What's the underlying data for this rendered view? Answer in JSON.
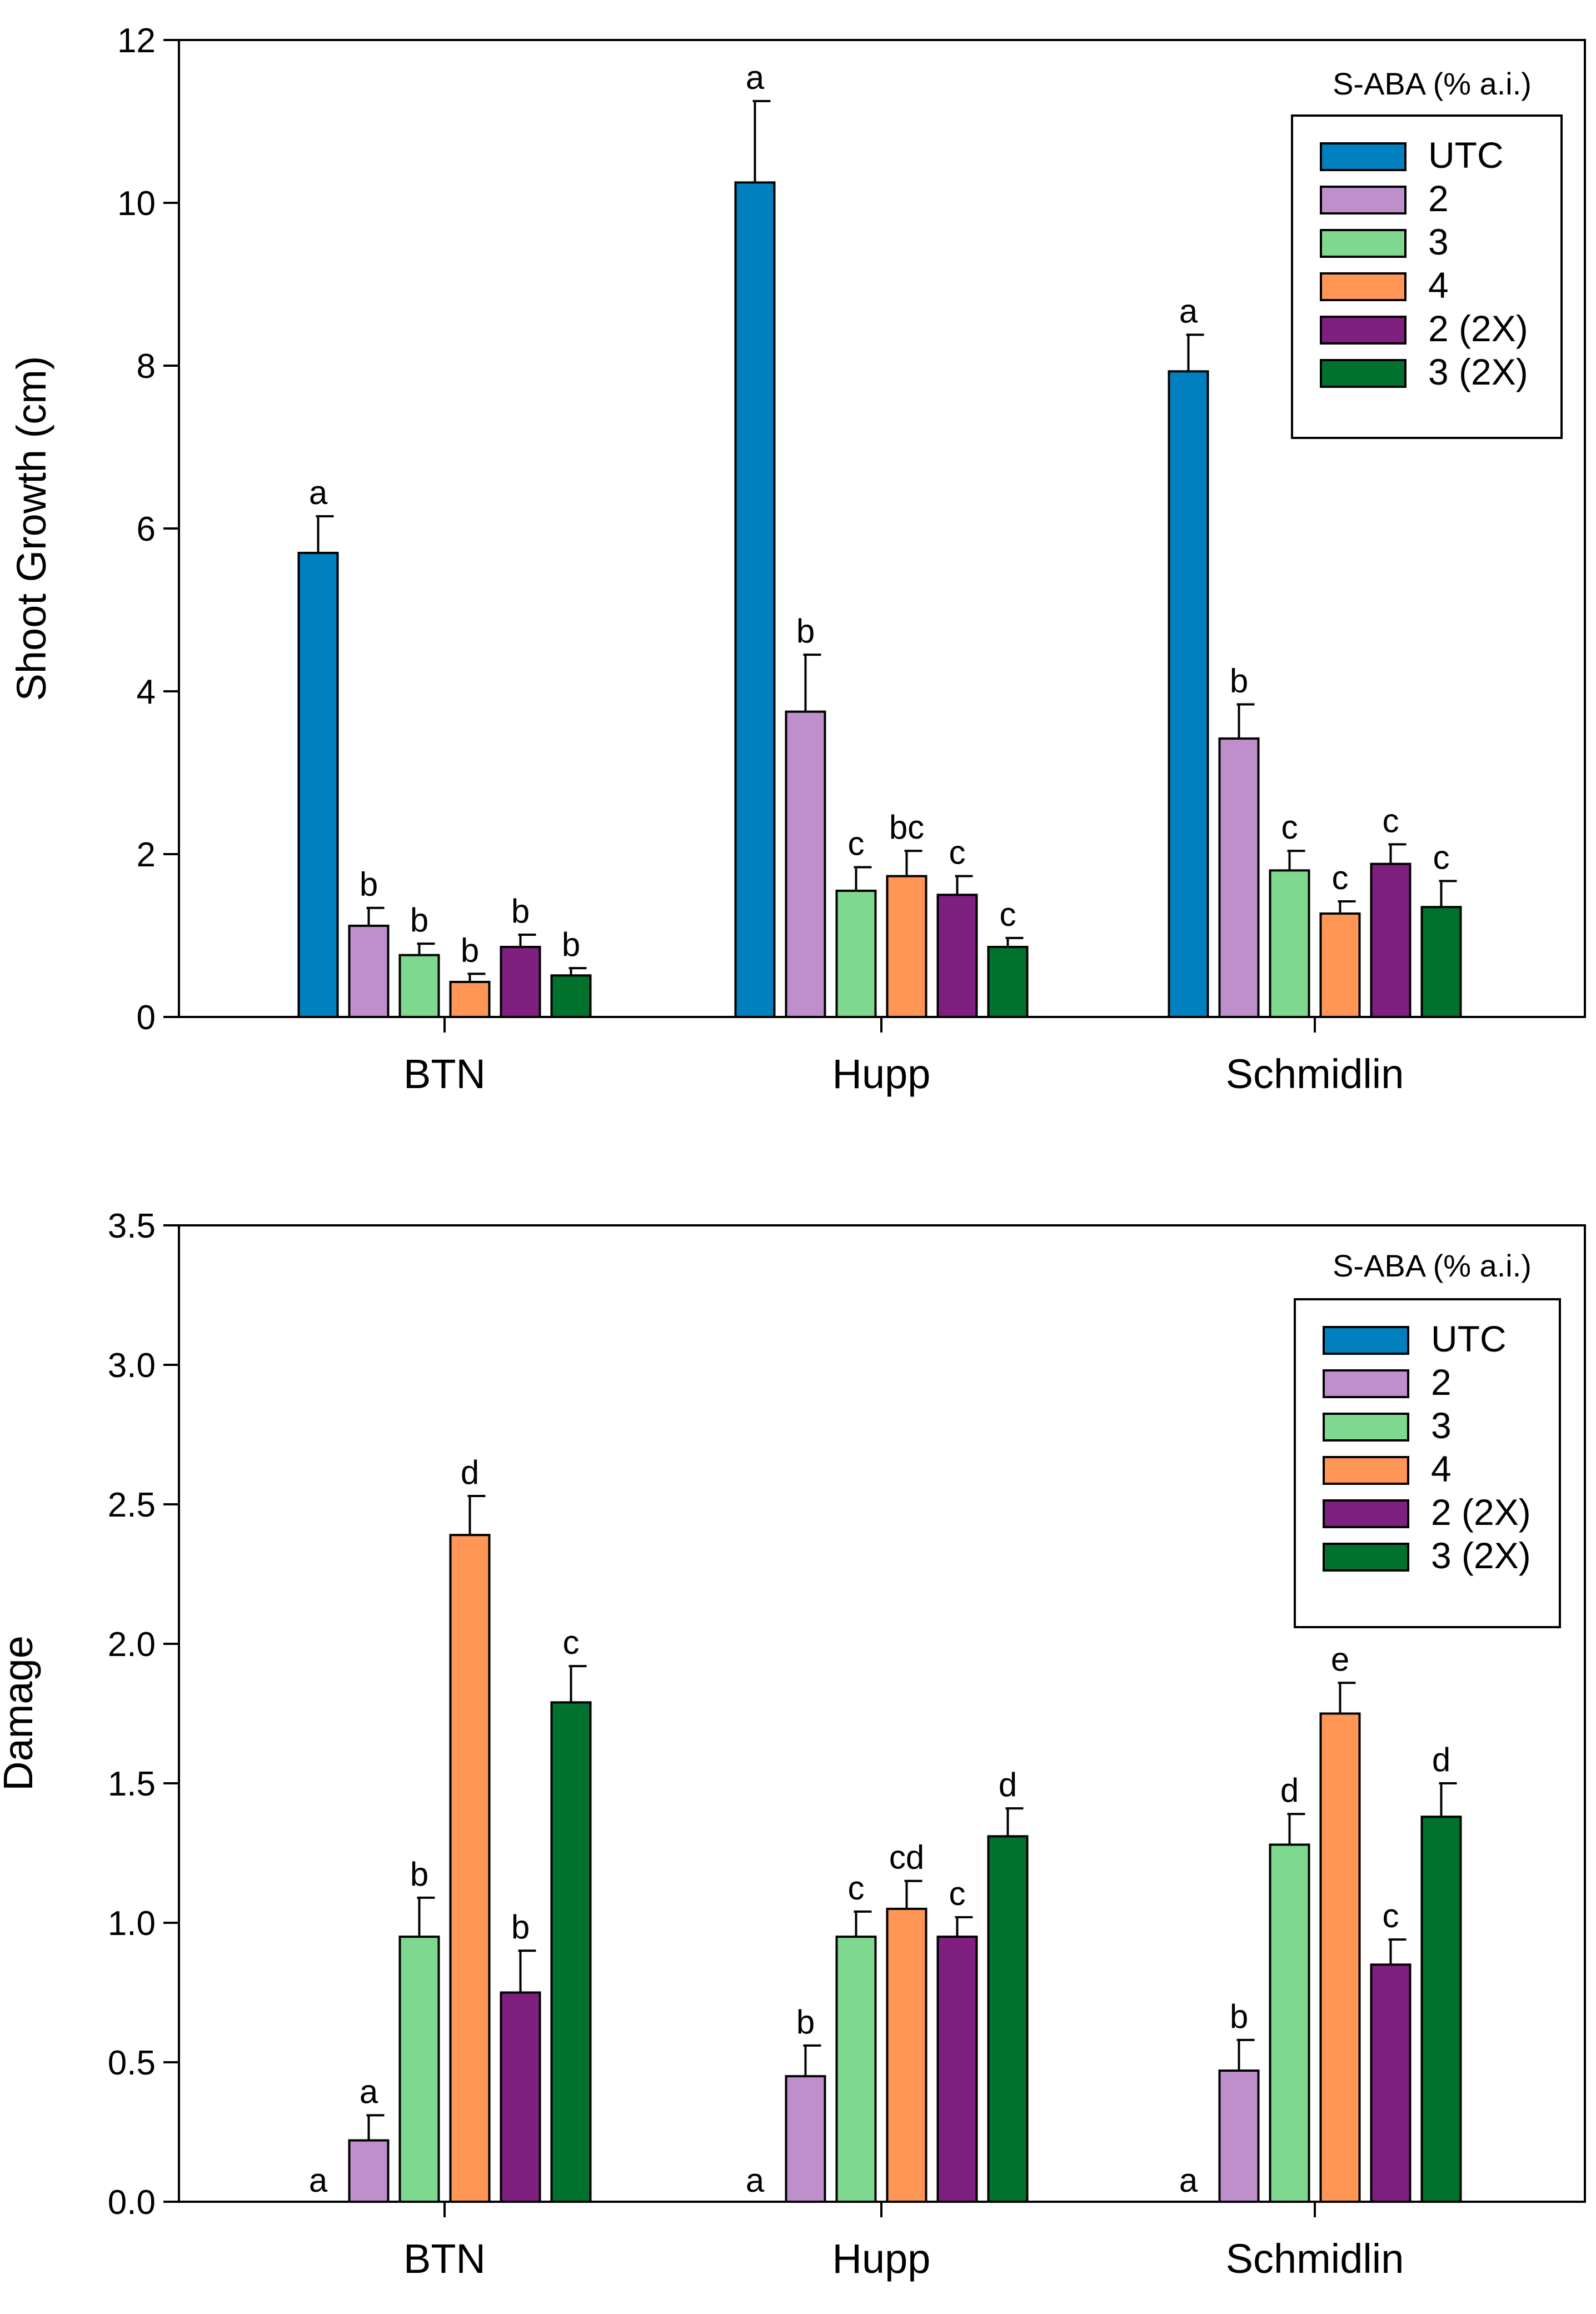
{
  "chart_data": [
    {
      "type": "bar",
      "ylabel": "Shoot Growth (cm)",
      "xlabel": "",
      "ylim": [
        0,
        12
      ],
      "yticks": [
        "0",
        "2",
        "4",
        "6",
        "8",
        "10",
        "12"
      ],
      "categories": [
        "BTN",
        "Hupp",
        "Schmidlin"
      ],
      "legend_title": "S-ABA (% a.i.)",
      "legend_position": "top-right",
      "series": [
        {
          "name": "UTC",
          "color": "#0080bf",
          "values": [
            5.7,
            10.25,
            7.93
          ],
          "errors": [
            0.45,
            1.0,
            0.45
          ],
          "labels": [
            "a",
            "a",
            "a"
          ]
        },
        {
          "name": "2",
          "color": "#bf8fcc",
          "values": [
            1.12,
            3.75,
            3.42
          ],
          "errors": [
            0.22,
            0.7,
            0.42
          ],
          "labels": [
            "b",
            "b",
            "b"
          ]
        },
        {
          "name": "3",
          "color": "#7fd88f",
          "values": [
            0.76,
            1.55,
            1.8
          ],
          "errors": [
            0.14,
            0.29,
            0.24
          ],
          "labels": [
            "b",
            "c",
            "c"
          ]
        },
        {
          "name": "4",
          "color": "#ff9655",
          "values": [
            0.43,
            1.73,
            1.27
          ],
          "errors": [
            0.1,
            0.31,
            0.15
          ],
          "labels": [
            "b",
            "bc",
            "c"
          ]
        },
        {
          "name": "2 (2X)",
          "color": "#7f1f7f",
          "values": [
            0.86,
            1.5,
            1.88
          ],
          "errors": [
            0.15,
            0.23,
            0.24
          ],
          "labels": [
            "b",
            "c",
            "c"
          ]
        },
        {
          "name": "3 (2X)",
          "color": "#00722e",
          "values": [
            0.51,
            0.86,
            1.35
          ],
          "errors": [
            0.09,
            0.11,
            0.32
          ],
          "labels": [
            "b",
            "c",
            "c"
          ]
        }
      ]
    },
    {
      "type": "bar",
      "ylabel": "Damage",
      "xlabel": "",
      "ylim": [
        0,
        3.5
      ],
      "yticks": [
        "0.0",
        "0.5",
        "1.0",
        "1.5",
        "2.0",
        "2.5",
        "3.0",
        "3.5"
      ],
      "categories": [
        "BTN",
        "Hupp",
        "Schmidlin"
      ],
      "legend_title": "S-ABA (% a.i.)",
      "legend_position": "top-right",
      "series": [
        {
          "name": "UTC",
          "color": "#0080bf",
          "values": [
            0,
            0,
            0
          ],
          "errors": [
            0,
            0,
            0
          ],
          "labels": [
            "a",
            "a",
            "a"
          ]
        },
        {
          "name": "2",
          "color": "#bf8fcc",
          "values": [
            0.22,
            0.45,
            0.47
          ],
          "errors": [
            0.09,
            0.11,
            0.11
          ],
          "labels": [
            "a",
            "b",
            "b"
          ]
        },
        {
          "name": "3",
          "color": "#7fd88f",
          "values": [
            0.95,
            0.95,
            1.28
          ],
          "errors": [
            0.14,
            0.09,
            0.11
          ],
          "labels": [
            "b",
            "c",
            "d"
          ]
        },
        {
          "name": "4",
          "color": "#ff9655",
          "values": [
            2.39,
            1.05,
            1.75
          ],
          "errors": [
            0.14,
            0.1,
            0.11
          ],
          "labels": [
            "d",
            "cd",
            "e"
          ]
        },
        {
          "name": "2 (2X)",
          "color": "#7f1f7f",
          "values": [
            0.75,
            0.95,
            0.85
          ],
          "errors": [
            0.15,
            0.07,
            0.09
          ],
          "labels": [
            "b",
            "c",
            "c"
          ]
        },
        {
          "name": "3 (2X)",
          "color": "#00722e",
          "values": [
            1.79,
            1.31,
            1.38
          ],
          "errors": [
            0.13,
            0.1,
            0.12
          ],
          "labels": [
            "c",
            "d",
            "d"
          ]
        }
      ]
    }
  ]
}
